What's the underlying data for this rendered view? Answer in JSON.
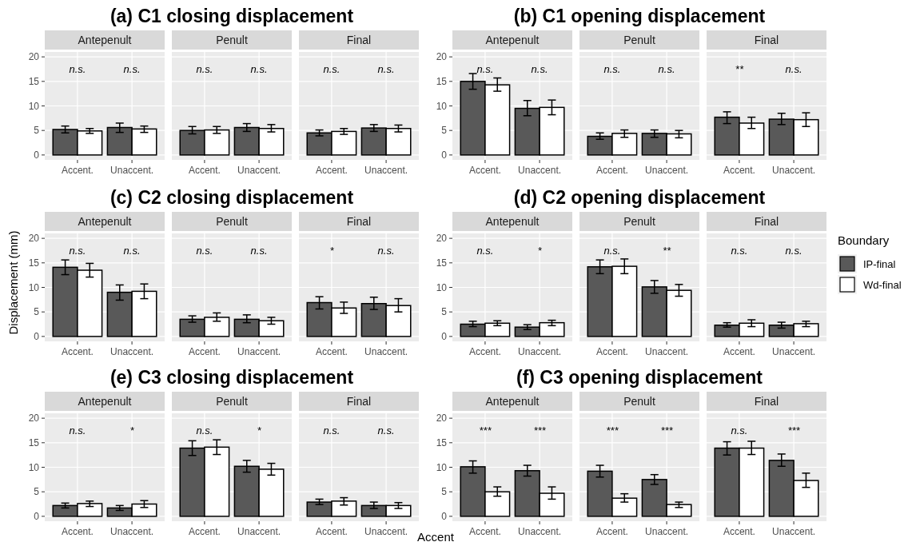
{
  "chart_data": [
    {
      "type": "bar",
      "title": "(a) C1 closing displacement",
      "subtitle": "Antepenult",
      "categories": [
        "Accent.",
        "Unaccent."
      ],
      "series": [
        {
          "color": "#595959",
          "values": [
            5.2,
            5.6
          ],
          "errors": [
            [
              4.5,
              5.9
            ],
            [
              4.6,
              6.5
            ]
          ]
        },
        {
          "color": "#ffffff",
          "values": [
            4.9,
            5.3
          ],
          "errors": [
            [
              4.4,
              5.4
            ],
            [
              4.6,
              5.9
            ]
          ]
        }
      ],
      "ylim": [
        -1,
        21
      ],
      "yticks": [
        0,
        5,
        10,
        15,
        20
      ],
      "grid": true,
      "annotations": [
        "n.s.",
        "n.s."
      ]
    },
    {
      "type": "bar",
      "subtitle": "Penult",
      "categories": [
        "Accent.",
        "Unaccent."
      ],
      "series": [
        {
          "color": "#595959",
          "values": [
            5.0,
            5.6
          ],
          "errors": [
            [
              4.3,
              5.8
            ],
            [
              4.8,
              6.4
            ]
          ]
        },
        {
          "color": "#ffffff",
          "values": [
            5.1,
            5.4
          ],
          "errors": [
            [
              4.4,
              5.8
            ],
            [
              4.7,
              6.2
            ]
          ]
        }
      ],
      "ylim": [
        -1,
        21
      ],
      "yticks": [
        0,
        5,
        10,
        15,
        20
      ],
      "grid": true,
      "tick_labels": "x",
      "annotations": [
        "n.s.",
        "n.s."
      ]
    },
    {
      "type": "bar",
      "subtitle": "Final",
      "categories": [
        "Accent.",
        "Unaccent."
      ],
      "series": [
        {
          "color": "#595959",
          "values": [
            4.5,
            5.5
          ],
          "errors": [
            [
              3.9,
              5.1
            ],
            [
              4.8,
              6.2
            ]
          ]
        },
        {
          "color": "#ffffff",
          "values": [
            4.8,
            5.4
          ],
          "errors": [
            [
              4.2,
              5.4
            ],
            [
              4.7,
              6.1
            ]
          ]
        }
      ],
      "ylim": [
        -1,
        21
      ],
      "yticks": [
        0,
        5,
        10,
        15,
        20
      ],
      "grid": true,
      "tick_labels": "x",
      "annotations": [
        "n.s.",
        "n.s."
      ]
    },
    {
      "type": "bar",
      "title": "(b) C1 opening displacement",
      "subtitle": "Antepenult",
      "categories": [
        "Accent.",
        "Unaccent."
      ],
      "series": [
        {
          "color": "#595959",
          "values": [
            15.0,
            9.5
          ],
          "errors": [
            [
              13.4,
              16.6
            ],
            [
              8.0,
              11.1
            ]
          ]
        },
        {
          "color": "#ffffff",
          "values": [
            14.3,
            9.7
          ],
          "errors": [
            [
              13.0,
              15.7
            ],
            [
              8.2,
              11.2
            ]
          ]
        }
      ],
      "ylim": [
        -1,
        21
      ],
      "yticks": [
        0,
        5,
        10,
        15,
        20
      ],
      "grid": true,
      "annotations": [
        "n.s.",
        "n.s."
      ]
    },
    {
      "type": "bar",
      "subtitle": "Penult",
      "categories": [
        "Accent.",
        "Unaccent."
      ],
      "series": [
        {
          "color": "#595959",
          "values": [
            3.8,
            4.4
          ],
          "errors": [
            [
              3.2,
              4.5
            ],
            [
              3.6,
              5.1
            ]
          ]
        },
        {
          "color": "#ffffff",
          "values": [
            4.4,
            4.3
          ],
          "errors": [
            [
              3.6,
              5.1
            ],
            [
              3.5,
              5.0
            ]
          ]
        }
      ],
      "ylim": [
        -1,
        21
      ],
      "yticks": [
        0,
        5,
        10,
        15,
        20
      ],
      "grid": true,
      "tick_labels": "x",
      "annotations": [
        "n.s.",
        "n.s."
      ]
    },
    {
      "type": "bar",
      "subtitle": "Final",
      "categories": [
        "Accent.",
        "Unaccent."
      ],
      "series": [
        {
          "color": "#595959",
          "values": [
            7.7,
            7.3
          ],
          "errors": [
            [
              6.4,
              8.8
            ],
            [
              6.2,
              8.5
            ]
          ]
        },
        {
          "color": "#ffffff",
          "values": [
            6.5,
            7.2
          ],
          "errors": [
            [
              5.4,
              7.7
            ],
            [
              5.8,
              8.6
            ]
          ]
        }
      ],
      "ylim": [
        -1,
        21
      ],
      "yticks": [
        0,
        5,
        10,
        15,
        20
      ],
      "grid": true,
      "tick_labels": "x",
      "annotations": [
        "**",
        "n.s."
      ]
    },
    {
      "type": "bar",
      "title": "(c) C2 closing displacement",
      "subtitle": "Antepenult",
      "ylabel": "Displacement (mm)",
      "categories": [
        "Accent.",
        "Unaccent."
      ],
      "series": [
        {
          "color": "#595959",
          "values": [
            14.1,
            9.0
          ],
          "errors": [
            [
              12.6,
              15.6
            ],
            [
              7.4,
              10.5
            ]
          ]
        },
        {
          "color": "#ffffff",
          "values": [
            13.5,
            9.2
          ],
          "errors": [
            [
              12.1,
              14.9
            ],
            [
              7.7,
              10.7
            ]
          ]
        }
      ],
      "ylim": [
        -1,
        21
      ],
      "yticks": [
        0,
        5,
        10,
        15,
        20
      ],
      "grid": true,
      "annotations": [
        "n.s.",
        "n.s."
      ]
    },
    {
      "type": "bar",
      "subtitle": "Penult",
      "categories": [
        "Accent.",
        "Unaccent."
      ],
      "series": [
        {
          "color": "#595959",
          "values": [
            3.5,
            3.5
          ],
          "errors": [
            [
              2.9,
              4.2
            ],
            [
              2.8,
              4.4
            ]
          ]
        },
        {
          "color": "#ffffff",
          "values": [
            3.9,
            3.2
          ],
          "errors": [
            [
              3.1,
              4.8
            ],
            [
              2.5,
              3.9
            ]
          ]
        }
      ],
      "ylim": [
        -1,
        21
      ],
      "yticks": [
        0,
        5,
        10,
        15,
        20
      ],
      "grid": true,
      "tick_labels": "x",
      "annotations": [
        "n.s.",
        "n.s."
      ]
    },
    {
      "type": "bar",
      "subtitle": "Final",
      "categories": [
        "Accent.",
        "Unaccent."
      ],
      "series": [
        {
          "color": "#595959",
          "values": [
            6.9,
            6.7
          ],
          "errors": [
            [
              5.6,
              8.1
            ],
            [
              5.5,
              8.0
            ]
          ]
        },
        {
          "color": "#ffffff",
          "values": [
            5.8,
            6.3
          ],
          "errors": [
            [
              4.7,
              7.0
            ],
            [
              5.0,
              7.7
            ]
          ]
        }
      ],
      "ylim": [
        -1,
        21
      ],
      "yticks": [
        0,
        5,
        10,
        15,
        20
      ],
      "grid": true,
      "tick_labels": "x",
      "annotations": [
        "*",
        "n.s."
      ]
    },
    {
      "type": "bar",
      "title": "(d) C2 opening displacement",
      "subtitle": "Antepenult",
      "categories": [
        "Accent.",
        "Unaccent."
      ],
      "series": [
        {
          "color": "#595959",
          "values": [
            2.5,
            1.9
          ],
          "errors": [
            [
              2.0,
              3.1
            ],
            [
              1.4,
              2.4
            ]
          ]
        },
        {
          "color": "#ffffff",
          "values": [
            2.7,
            2.8
          ],
          "errors": [
            [
              2.2,
              3.2
            ],
            [
              2.2,
              3.3
            ]
          ]
        }
      ],
      "ylim": [
        -1,
        21
      ],
      "yticks": [
        0,
        5,
        10,
        15,
        20
      ],
      "grid": true,
      "annotations": [
        "n.s.",
        "*"
      ]
    },
    {
      "type": "bar",
      "subtitle": "Penult",
      "categories": [
        "Accent.",
        "Unaccent."
      ],
      "series": [
        {
          "color": "#595959",
          "values": [
            14.2,
            10.1
          ],
          "errors": [
            [
              12.8,
              15.6
            ],
            [
              8.8,
              11.4
            ]
          ]
        },
        {
          "color": "#ffffff",
          "values": [
            14.3,
            9.4
          ],
          "errors": [
            [
              12.8,
              15.8
            ],
            [
              8.2,
              10.6
            ]
          ]
        }
      ],
      "ylim": [
        -1,
        21
      ],
      "yticks": [
        0,
        5,
        10,
        15,
        20
      ],
      "grid": true,
      "tick_labels": "x",
      "annotations": [
        "n.s.",
        "**"
      ]
    },
    {
      "type": "bar",
      "subtitle": "Final",
      "legend": "right",
      "legend_title": "Boundary",
      "categories": [
        "Accent.",
        "Unaccent."
      ],
      "series": [
        {
          "name": "IP-final",
          "color": "#595959",
          "values": [
            2.3,
            2.3
          ],
          "errors": [
            [
              1.9,
              2.8
            ],
            [
              1.7,
              2.9
            ]
          ]
        },
        {
          "name": "Wd-final",
          "color": "#ffffff",
          "values": [
            2.7,
            2.6
          ],
          "errors": [
            [
              2.0,
              3.4
            ],
            [
              2.0,
              3.1
            ]
          ]
        }
      ],
      "ylim": [
        -1,
        21
      ],
      "yticks": [
        0,
        5,
        10,
        15,
        20
      ],
      "grid": true,
      "tick_labels": "x",
      "annotations": [
        "n.s.",
        "n.s."
      ]
    },
    {
      "type": "bar",
      "title": "(e) C3 closing displacement",
      "subtitle": "Antepenult",
      "categories": [
        "Accent.",
        "Unaccent."
      ],
      "series": [
        {
          "color": "#595959",
          "values": [
            2.2,
            1.7
          ],
          "errors": [
            [
              1.7,
              2.7
            ],
            [
              1.2,
              2.2
            ]
          ]
        },
        {
          "color": "#ffffff",
          "values": [
            2.6,
            2.5
          ],
          "errors": [
            [
              2.0,
              3.1
            ],
            [
              1.8,
              3.2
            ]
          ]
        }
      ],
      "ylim": [
        -1,
        21
      ],
      "yticks": [
        0,
        5,
        10,
        15,
        20
      ],
      "grid": true,
      "annotations": [
        "n.s.",
        "*"
      ]
    },
    {
      "type": "bar",
      "subtitle": "Penult",
      "categories": [
        "Accent.",
        "Unaccent."
      ],
      "series": [
        {
          "color": "#595959",
          "values": [
            13.9,
            10.2
          ],
          "errors": [
            [
              12.4,
              15.4
            ],
            [
              9.0,
              11.4
            ]
          ]
        },
        {
          "color": "#ffffff",
          "values": [
            14.1,
            9.6
          ],
          "errors": [
            [
              12.6,
              15.6
            ],
            [
              8.4,
              10.8
            ]
          ]
        }
      ],
      "ylim": [
        -1,
        21
      ],
      "yticks": [
        0,
        5,
        10,
        15,
        20
      ],
      "grid": true,
      "tick_labels": "x",
      "annotations": [
        "n.s.",
        "*"
      ]
    },
    {
      "type": "bar",
      "subtitle": "Final",
      "xlabel": "Accent",
      "categories": [
        "Accent.",
        "Unaccent."
      ],
      "series": [
        {
          "color": "#595959",
          "values": [
            2.9,
            2.2
          ],
          "errors": [
            [
              2.4,
              3.5
            ],
            [
              1.6,
              2.9
            ]
          ]
        },
        {
          "color": "#ffffff",
          "values": [
            3.1,
            2.2
          ],
          "errors": [
            [
              2.3,
              3.8
            ],
            [
              1.6,
              2.8
            ]
          ]
        }
      ],
      "ylim": [
        -1,
        21
      ],
      "yticks": [
        0,
        5,
        10,
        15,
        20
      ],
      "grid": true,
      "tick_labels": "x",
      "annotations": [
        "n.s.",
        "n.s."
      ]
    },
    {
      "type": "bar",
      "title": "(f) C3 opening displacement",
      "subtitle": "Antepenult",
      "categories": [
        "Accent.",
        "Unaccent."
      ],
      "series": [
        {
          "color": "#595959",
          "values": [
            10.1,
            9.3
          ],
          "errors": [
            [
              8.8,
              11.3
            ],
            [
              8.2,
              10.4
            ]
          ]
        },
        {
          "color": "#ffffff",
          "values": [
            5.0,
            4.7
          ],
          "errors": [
            [
              4.1,
              6.0
            ],
            [
              3.5,
              6.0
            ]
          ]
        }
      ],
      "ylim": [
        -1,
        21
      ],
      "yticks": [
        0,
        5,
        10,
        15,
        20
      ],
      "grid": true,
      "annotations": [
        "***",
        "***"
      ]
    },
    {
      "type": "bar",
      "subtitle": "Penult",
      "categories": [
        "Accent.",
        "Unaccent."
      ],
      "series": [
        {
          "color": "#595959",
          "values": [
            9.2,
            7.5
          ],
          "errors": [
            [
              8.0,
              10.4
            ],
            [
              6.5,
              8.5
            ]
          ]
        },
        {
          "color": "#ffffff",
          "values": [
            3.7,
            2.4
          ],
          "errors": [
            [
              2.9,
              4.6
            ],
            [
              1.8,
              2.9
            ]
          ]
        }
      ],
      "ylim": [
        -1,
        21
      ],
      "yticks": [
        0,
        5,
        10,
        15,
        20
      ],
      "grid": true,
      "tick_labels": "x",
      "annotations": [
        "***",
        "***"
      ]
    },
    {
      "type": "bar",
      "subtitle": "Final",
      "categories": [
        "Accent.",
        "Unaccent."
      ],
      "series": [
        {
          "color": "#595959",
          "values": [
            13.9,
            11.4
          ],
          "errors": [
            [
              12.5,
              15.2
            ],
            [
              10.2,
              12.7
            ]
          ]
        },
        {
          "color": "#ffffff",
          "values": [
            13.9,
            7.3
          ],
          "errors": [
            [
              12.6,
              15.3
            ],
            [
              5.9,
              8.8
            ]
          ]
        }
      ],
      "ylim": [
        -1,
        21
      ],
      "yticks": [
        0,
        5,
        10,
        15,
        20
      ],
      "grid": true,
      "tick_labels": "x",
      "annotations": [
        "n.s.",
        "***"
      ]
    }
  ]
}
